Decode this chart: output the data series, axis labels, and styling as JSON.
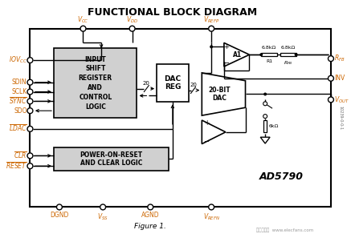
{
  "title": "FUNCTIONAL BLOCK DIAGRAM",
  "orange_color": "#cc6600",
  "block1_text": "INPUT\nSHIFT\nREGISTER\nAND\nCONTROL\nLOGIC",
  "block2_text": "DAC\nREG",
  "block3_text": "20-BIT\nDAC",
  "block4_text": "POWER-ON-RESET\nAND CLEAR LOGIC",
  "amp_label": "A1",
  "ad_label": "AD5790",
  "figure_caption": "Figure 1.",
  "res1_label": "6.8kΩ",
  "res2_label": "6.8kΩ",
  "r1_label": "R1",
  "rfb_label": "Rₛₚ",
  "res6k_label": "6kΩ",
  "watermark": "电子发烧友  www.elecfans.com",
  "side_text": "10239-0-0-1"
}
